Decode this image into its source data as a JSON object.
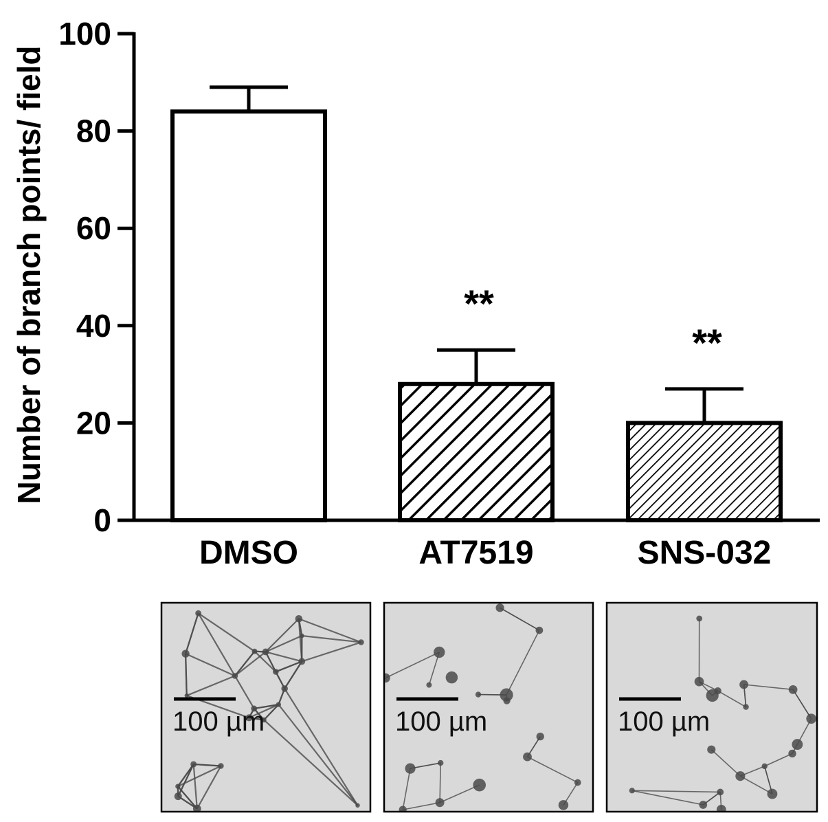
{
  "chart_data": {
    "type": "bar",
    "title": "",
    "xlabel": "",
    "ylabel": "Number of branch points/ field",
    "ylim": [
      0,
      100
    ],
    "yticks": [
      0,
      20,
      40,
      60,
      80,
      100
    ],
    "categories": [
      "DMSO",
      "AT7519",
      "SNS-032"
    ],
    "values": [
      84,
      28,
      20
    ],
    "error": [
      5,
      7,
      7
    ],
    "annotations": [
      "",
      "**",
      "**"
    ],
    "bar_fill": [
      "solid-white",
      "wide-hatch",
      "dense-hatch"
    ],
    "grid": false,
    "legend": "none"
  },
  "micrographs": [
    {
      "condition": "DMSO",
      "scale_label": "100 µm"
    },
    {
      "condition": "AT7519",
      "scale_label": "100 µm"
    },
    {
      "condition": "SNS-032",
      "scale_label": "100 µm"
    }
  ],
  "colors": {
    "ink": "#000000",
    "panel": "#d9d9d9",
    "cell": "#4a4a4a"
  }
}
